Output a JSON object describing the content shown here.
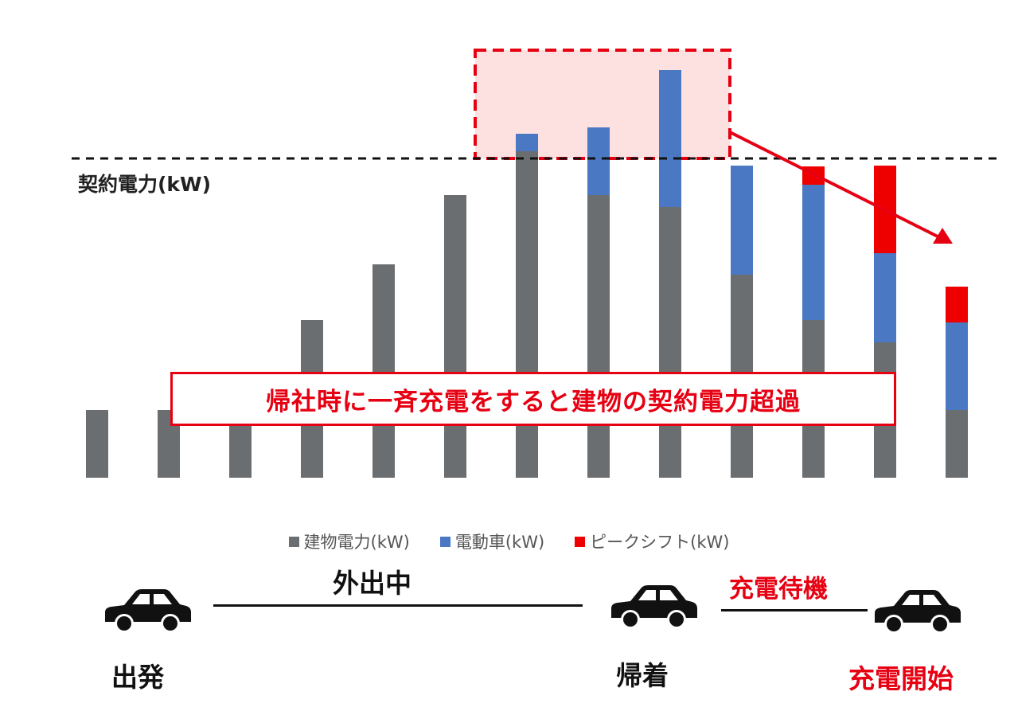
{
  "chart_data": {
    "type": "bar",
    "stacked": true,
    "categories": [
      "",
      "",
      "",
      "",
      "",
      "",
      "",
      "",
      "",
      "",
      "",
      "",
      ""
    ],
    "series": [
      {
        "name": "建物電力(kW)",
        "color": "#6b6e70",
        "values": [
          85,
          85,
          85,
          198,
          268,
          355,
          410,
          355,
          340,
          255,
          198,
          170,
          85
        ]
      },
      {
        "name": "電動車(kW)",
        "color": "#4a78c2",
        "values": [
          0,
          0,
          0,
          0,
          0,
          0,
          22,
          85,
          172,
          137,
          170,
          112,
          110
        ]
      },
      {
        "name": "ピークシフト(kW)",
        "color": "#ee0000",
        "values": [
          0,
          0,
          0,
          0,
          0,
          0,
          0,
          0,
          0,
          0,
          23,
          110,
          45
        ]
      }
    ],
    "contract_power": 400,
    "contract_label": "契約電力(kW)",
    "ylim": [
      0,
      520
    ],
    "grid": false,
    "legend": "bottom",
    "annotation": "帰社時に一斉充電をすると建物の契約電力超過"
  },
  "timeline": {
    "depart_label": "出発",
    "outing_label": "外出中",
    "return_label": "帰着",
    "standby_label": "充電待機",
    "start_label": "充電開始"
  },
  "colors": {
    "accent": "#e60012",
    "building": "#6b6e70",
    "ev": "#4a78c2",
    "peak": "#ee0000"
  },
  "icons": {
    "car": "car-icon"
  }
}
